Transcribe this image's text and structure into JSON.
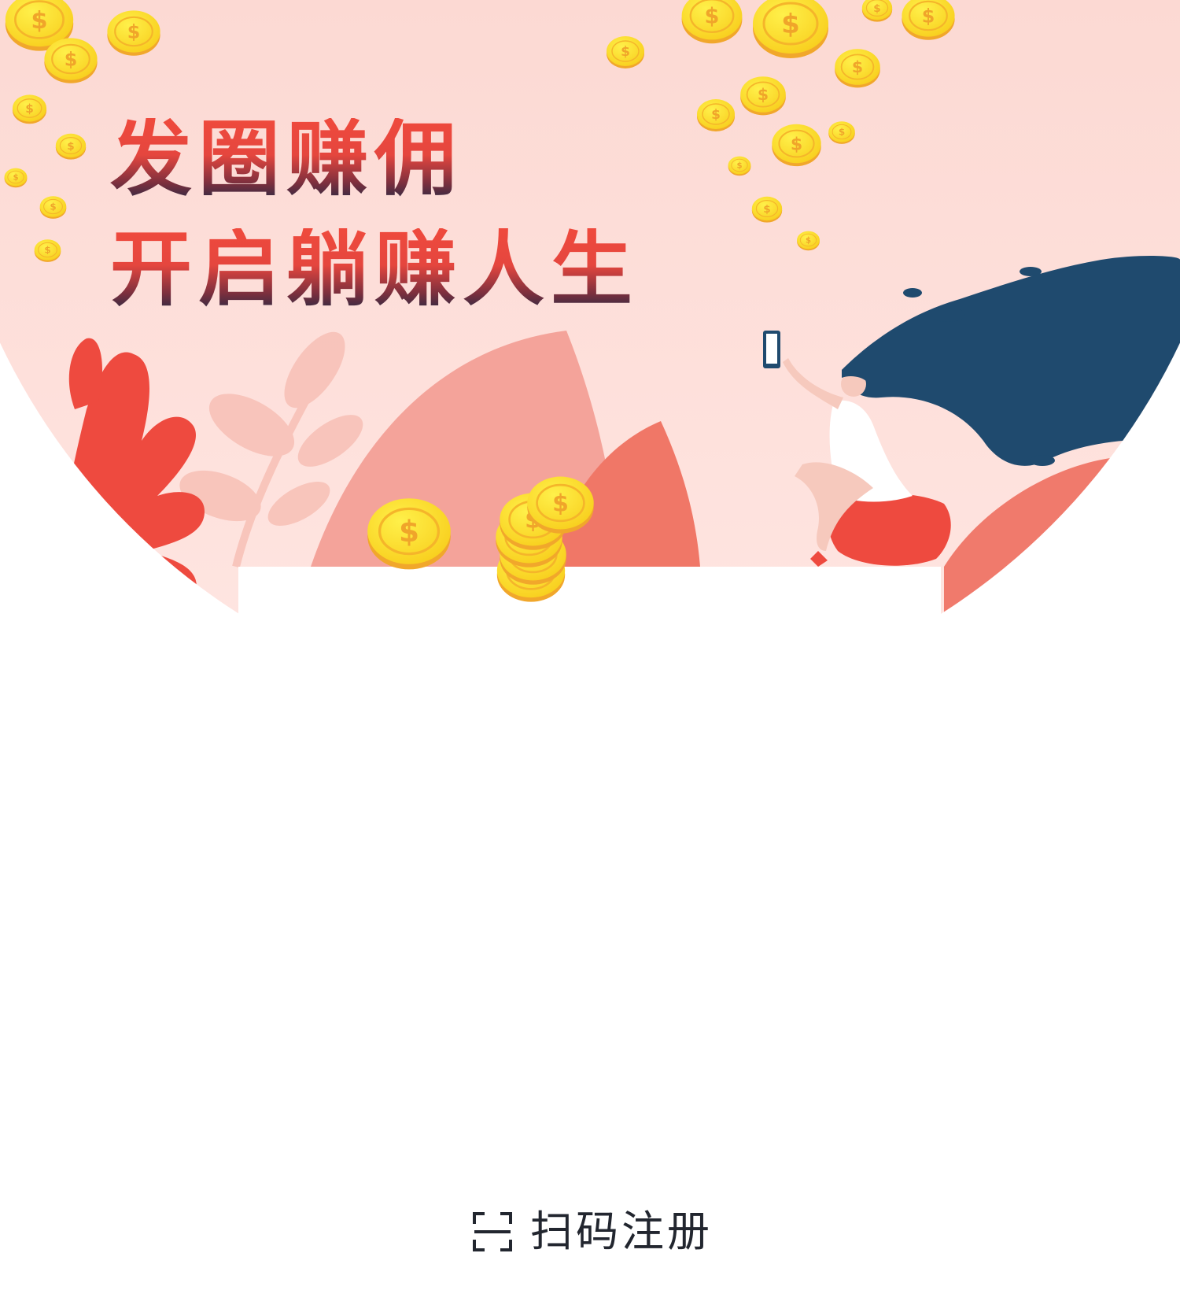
{
  "banner": {
    "headline_line1": "发圈赚佣",
    "headline_line2": "开启躺赚人生",
    "icons": [
      "coin-icon",
      "woman-selfie-illustration",
      "coral-plant-illustration",
      "leaf-branch-illustration",
      "coin-stack-icon"
    ]
  },
  "footer": {
    "scan_register_label": "扫码注册",
    "scan_icon": "scan-frame-icon"
  },
  "colors": {
    "background_pink": "#fde0dc",
    "coral": "#ee4a3f",
    "salmon": "#f4a39a",
    "hair_navy": "#1f4a6e",
    "coin_yellow": "#f9d629",
    "coin_gold": "#f1a72b",
    "text_dark": "#22262f"
  }
}
